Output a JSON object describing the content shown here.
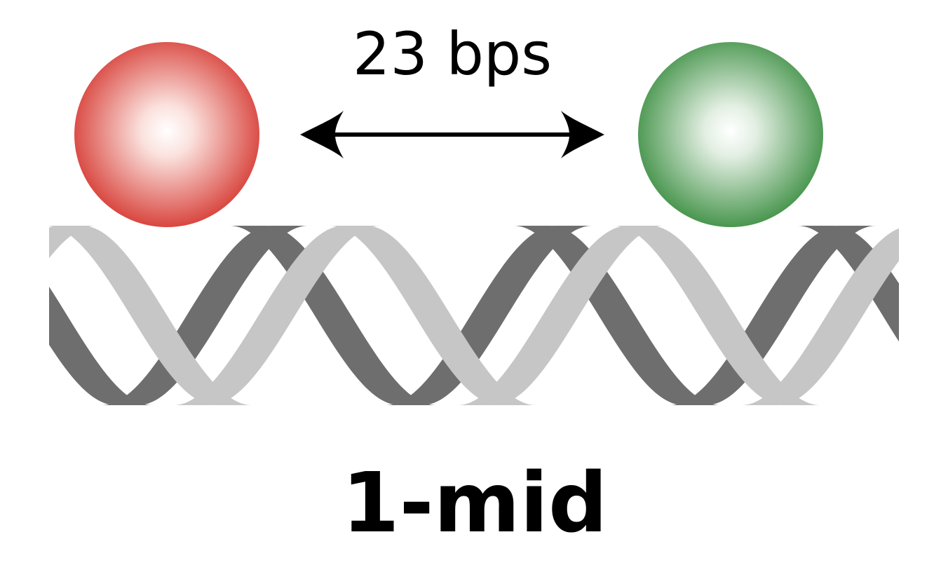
{
  "figure": {
    "distance_label": "23 bps",
    "construct_label": "1-mid"
  },
  "helix": {
    "front_strand_color": "#c6c6c6",
    "back_strand_color": "#6e6e6e"
  },
  "markers": {
    "donor": {
      "name": "red-fluorophore",
      "edge_color": "#d63a33",
      "center_color": "#ffffff"
    },
    "acceptor": {
      "name": "green-fluorophore",
      "edge_color": "#3d8f43",
      "center_color": "#ffffff"
    }
  },
  "arrow": {
    "color": "#000000",
    "direction": "double-headed"
  }
}
